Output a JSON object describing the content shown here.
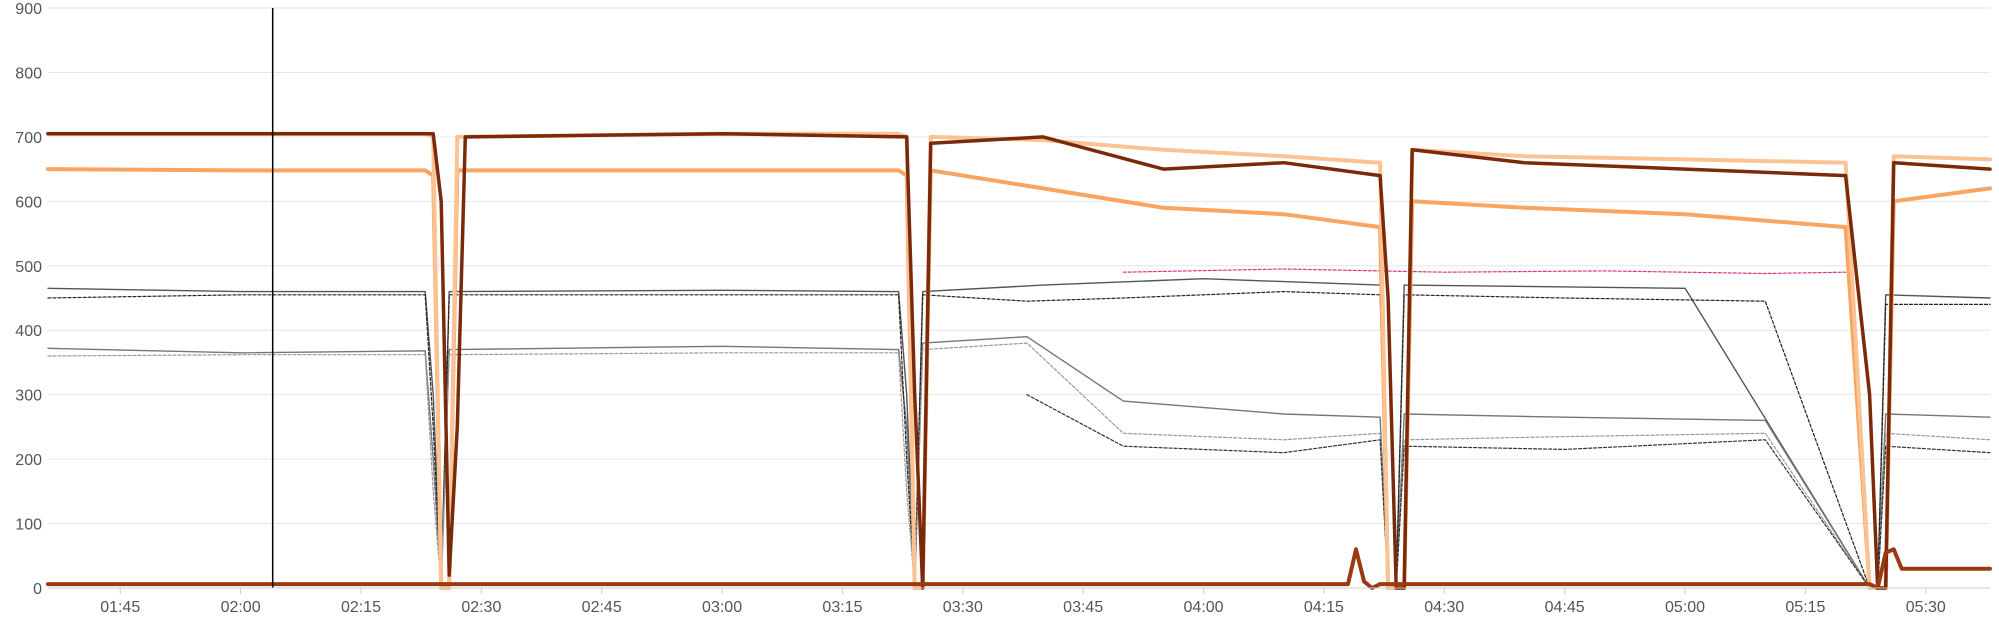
{
  "chart_data": {
    "type": "line",
    "title": "",
    "xlabel": "",
    "ylabel": "",
    "ylim": [
      0,
      900
    ],
    "y_ticks": [
      "0",
      "100",
      "200",
      "300",
      "400",
      "500",
      "600",
      "700",
      "800",
      "900"
    ],
    "x_ticks": [
      "01:45",
      "02:00",
      "02:15",
      "02:30",
      "02:45",
      "03:00",
      "03:15",
      "03:30",
      "03:45",
      "04:00",
      "04:15",
      "04:30",
      "04:45",
      "05:00",
      "05:15",
      "05:30"
    ],
    "x_range": [
      "01:36",
      "05:38"
    ],
    "grid": true,
    "legend": "none",
    "cursor_time": "02:04",
    "series": [
      {
        "color": "#7a2a0a",
        "width": 3.5,
        "style": "solid",
        "x": [
          "01:36",
          "02:00",
          "02:24",
          "02:25",
          "02:26",
          "02:27",
          "02:28",
          "03:00",
          "03:23",
          "03:24",
          "03:25",
          "03:26",
          "03:40",
          "03:55",
          "04:10",
          "04:22",
          "04:23",
          "04:24",
          "04:25",
          "04:26",
          "04:40",
          "05:00",
          "05:20",
          "05:23",
          "05:24",
          "05:25",
          "05:26",
          "05:38"
        ],
        "y": [
          705,
          705,
          705,
          600,
          20,
          250,
          700,
          705,
          700,
          300,
          0,
          690,
          700,
          650,
          660,
          640,
          450,
          0,
          0,
          680,
          660,
          650,
          640,
          300,
          0,
          0,
          660,
          650
        ]
      },
      {
        "color": "#fbc394",
        "width": 4,
        "style": "solid",
        "x": [
          "01:36",
          "02:00",
          "02:23",
          "02:24",
          "02:25",
          "02:26",
          "02:27",
          "03:00",
          "03:22",
          "03:23",
          "03:24",
          "03:25",
          "03:26",
          "03:40",
          "03:55",
          "04:10",
          "04:22",
          "04:23",
          "04:24",
          "04:25",
          "04:26",
          "04:40",
          "05:00",
          "05:20",
          "05:23",
          "05:24",
          "05:25",
          "05:26",
          "05:38"
        ],
        "y": [
          705,
          705,
          705,
          700,
          0,
          0,
          700,
          705,
          705,
          700,
          0,
          0,
          700,
          695,
          680,
          670,
          660,
          0,
          0,
          0,
          680,
          670,
          665,
          660,
          0,
          0,
          0,
          670,
          665
        ]
      },
      {
        "color": "#f8a463",
        "width": 4,
        "style": "solid",
        "x": [
          "01:36",
          "02:00",
          "02:23",
          "02:24",
          "02:25",
          "02:26",
          "02:27",
          "03:00",
          "03:22",
          "03:23",
          "03:24",
          "03:25",
          "03:26",
          "03:40",
          "03:55",
          "04:10",
          "04:22",
          "04:23",
          "04:24",
          "04:25",
          "04:26",
          "04:40",
          "05:00",
          "05:20",
          "05:23",
          "05:24",
          "05:25",
          "05:26",
          "05:38"
        ],
        "y": [
          650,
          648,
          648,
          640,
          0,
          0,
          648,
          648,
          648,
          640,
          0,
          0,
          648,
          620,
          590,
          580,
          560,
          0,
          0,
          0,
          600,
          590,
          580,
          560,
          0,
          0,
          0,
          600,
          620
        ]
      },
      {
        "color": "#9b3a10",
        "width": 4,
        "style": "solid",
        "x": [
          "01:36",
          "02:00",
          "04:18",
          "04:19",
          "04:20",
          "04:21",
          "04:22",
          "05:20",
          "05:23",
          "05:24",
          "05:25",
          "05:26",
          "05:27",
          "05:38"
        ],
        "y": [
          6,
          6,
          6,
          60,
          10,
          0,
          6,
          6,
          6,
          0,
          55,
          60,
          30,
          30
        ]
      },
      {
        "color": "#555555",
        "width": 1.4,
        "style": "solid",
        "x": [
          "01:36",
          "02:00",
          "02:23",
          "02:24",
          "02:25",
          "02:26",
          "03:00",
          "03:22",
          "03:23",
          "03:24",
          "03:25",
          "03:40",
          "04:00",
          "04:22",
          "04:23",
          "04:24",
          "04:25",
          "05:00",
          "05:23",
          "05:24",
          "05:25",
          "05:38"
        ],
        "y": [
          465,
          460,
          460,
          300,
          0,
          460,
          462,
          460,
          300,
          0,
          460,
          470,
          480,
          470,
          0,
          0,
          470,
          465,
          0,
          0,
          455,
          450
        ]
      },
      {
        "color": "#777777",
        "width": 1.4,
        "style": "solid",
        "x": [
          "01:36",
          "02:00",
          "02:23",
          "02:24",
          "02:25",
          "02:26",
          "03:00",
          "03:22",
          "03:23",
          "03:24",
          "03:25",
          "03:38",
          "03:50",
          "04:10",
          "04:22",
          "04:23",
          "04:24",
          "04:25",
          "04:45",
          "05:10",
          "05:23",
          "05:24",
          "05:25",
          "05:38"
        ],
        "y": [
          372,
          365,
          368,
          200,
          0,
          370,
          375,
          370,
          250,
          0,
          380,
          390,
          290,
          270,
          265,
          0,
          0,
          270,
          265,
          260,
          0,
          0,
          270,
          265
        ]
      },
      {
        "color": "#222222",
        "width": 1.2,
        "style": "dashed",
        "x": [
          "01:36",
          "02:00",
          "02:23",
          "02:24",
          "02:25",
          "02:26",
          "03:00",
          "03:22",
          "03:23",
          "03:24",
          "03:25",
          "03:38",
          "03:50",
          "04:10",
          "04:22",
          "04:23",
          "04:24",
          "04:25",
          "04:45",
          "05:10",
          "05:23",
          "05:24",
          "05:25",
          "05:38"
        ],
        "y": [
          450,
          455,
          455,
          250,
          0,
          455,
          455,
          455,
          200,
          0,
          455,
          445,
          450,
          460,
          455,
          0,
          0,
          455,
          450,
          445,
          0,
          0,
          440,
          440
        ]
      },
      {
        "color": "#999999",
        "width": 1.2,
        "style": "dashed",
        "x": [
          "01:36",
          "02:00",
          "02:23",
          "02:24",
          "02:25",
          "02:26",
          "03:00",
          "03:22",
          "03:23",
          "03:24",
          "03:25",
          "03:38",
          "03:50",
          "04:10",
          "04:22",
          "04:23",
          "04:24",
          "04:25",
          "04:45",
          "05:10",
          "05:23",
          "05:24",
          "05:25",
          "05:38"
        ],
        "y": [
          360,
          362,
          362,
          150,
          0,
          362,
          365,
          365,
          150,
          0,
          370,
          380,
          240,
          230,
          240,
          0,
          0,
          230,
          235,
          240,
          0,
          0,
          240,
          230
        ]
      },
      {
        "color": "#e0338a",
        "width": 1.2,
        "style": "dashed",
        "x": [
          "03:50",
          "04:10",
          "04:30",
          "04:50",
          "05:10",
          "05:20"
        ],
        "y": [
          490,
          495,
          490,
          492,
          488,
          490
        ]
      },
      {
        "color": "#333333",
        "width": 1.2,
        "style": "dashed",
        "x": [
          "03:38",
          "03:50",
          "04:10",
          "04:22",
          "04:23",
          "04:24",
          "04:25",
          "04:45",
          "05:10",
          "05:23",
          "05:24",
          "05:25",
          "05:38"
        ],
        "y": [
          300,
          220,
          210,
          230,
          0,
          0,
          220,
          215,
          230,
          0,
          0,
          220,
          210
        ]
      }
    ]
  }
}
